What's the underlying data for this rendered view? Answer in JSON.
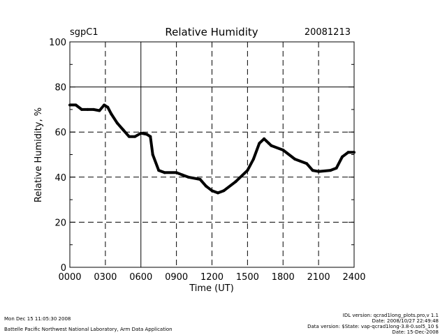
{
  "chart_data": {
    "type": "line",
    "title": "Relative Humidity",
    "site": "sgpC1",
    "date": "20081213",
    "xlabel": "Time (UT)",
    "ylabel": "Relative Humidity, %",
    "xlim": [
      0,
      24
    ],
    "ylim": [
      0,
      100
    ],
    "x_ticks": [
      0,
      3,
      6,
      9,
      12,
      15,
      18,
      21,
      24
    ],
    "x_tick_labels": [
      "0000",
      "0300",
      "0600",
      "0900",
      "1200",
      "1500",
      "1800",
      "2100",
      "2400"
    ],
    "y_ticks": [
      0,
      20,
      40,
      60,
      80,
      100
    ],
    "y_tick_labels": [
      "0",
      "20",
      "40",
      "60",
      "80",
      "100"
    ],
    "grid": true,
    "series": [
      {
        "name": "Relative Humidity",
        "color": "#000000",
        "x": [
          0,
          0.5,
          1,
          1.5,
          2,
          2.5,
          2.9,
          3.2,
          3.5,
          4,
          4.5,
          5,
          5.5,
          6,
          6.5,
          6.8,
          7,
          7.5,
          8,
          9,
          9.5,
          10,
          11,
          11.5,
          12,
          12.5,
          13,
          14,
          15,
          15.5,
          16,
          16.4,
          16.8,
          17,
          18,
          19,
          20,
          20.5,
          21,
          22,
          22.5,
          23,
          23.5,
          24
        ],
        "y": [
          72,
          72,
          70,
          70,
          70,
          69.5,
          72,
          71,
          68,
          64,
          61,
          58,
          58,
          59.5,
          59,
          58,
          50,
          43,
          42,
          42,
          41,
          40,
          39,
          36,
          34,
          33,
          34,
          38,
          43,
          48,
          55,
          57,
          55,
          54,
          52,
          48,
          46,
          43,
          42.5,
          43,
          44,
          49,
          51,
          51
        ]
      }
    ]
  },
  "footer": {
    "timestamp": "Mon Dec 15 11:05:30 2008",
    "organization": "Battelle Pacific Northwest National Laboratory, Arm Data Application",
    "idl_version": "IDL version: qcrad1long_plots.pro,v 1.1",
    "idl_date": "Date: 2008/10/27 22:49:48",
    "data_version": "Data version: $State: vap-qcrad1long-3.8-0.sol5_10 $",
    "data_date": "Date: 15-Dec-2008"
  }
}
